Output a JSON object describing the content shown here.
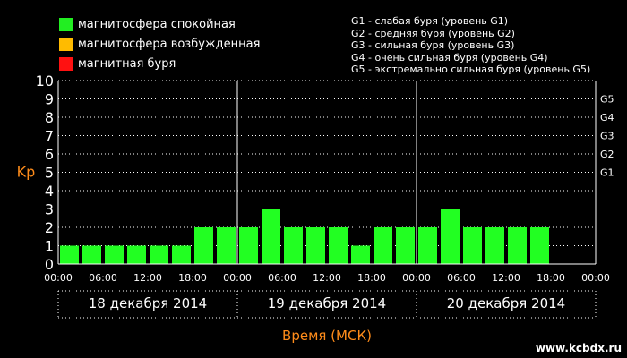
{
  "legend": [
    {
      "label": "магнитосфера спокойная",
      "color": "#22ee22"
    },
    {
      "label": "магнитосфера возбужденная",
      "color": "#ffbb00"
    },
    {
      "label": "магнитная буря",
      "color": "#ff1111"
    }
  ],
  "g_legend": [
    "G1 - слабая буря (уровень G1)",
    "G2 - средняя буря (уровень G2)",
    "G3 - сильная буря (уровень G3)",
    "G4 - очень сильная буря (уровень G4)",
    "G5 - экстремально сильная буря (уровень G5)"
  ],
  "watermark": "www.kcbdx.ru",
  "chart_data": {
    "type": "bar",
    "ylabel": "Kp",
    "xlabel": "Время (МСК)",
    "ylim": [
      0,
      10
    ],
    "y_ticks": [
      "0",
      "1",
      "2",
      "3",
      "4",
      "5",
      "6",
      "7",
      "8",
      "9",
      "10"
    ],
    "g_levels": [
      {
        "label": "G1",
        "kp": 5
      },
      {
        "label": "G2",
        "kp": 6
      },
      {
        "label": "G3",
        "kp": 7
      },
      {
        "label": "G4",
        "kp": 8
      },
      {
        "label": "G5",
        "kp": 9
      }
    ],
    "x_ticks": [
      "00:00",
      "06:00",
      "12:00",
      "18:00",
      "00:00",
      "06:00",
      "12:00",
      "18:00",
      "00:00",
      "06:00",
      "12:00",
      "18:00",
      "00:00"
    ],
    "days": [
      "18 декабря 2014",
      "19 декабря 2014",
      "20 декабря 2014"
    ],
    "slots_per_day": 8,
    "bar_color": "#22ff22",
    "grid": true,
    "values": [
      1,
      1,
      1,
      1,
      1,
      1,
      2,
      2,
      2,
      3,
      2,
      2,
      2,
      1,
      2,
      2,
      2,
      3,
      2,
      2,
      2,
      2
    ]
  }
}
